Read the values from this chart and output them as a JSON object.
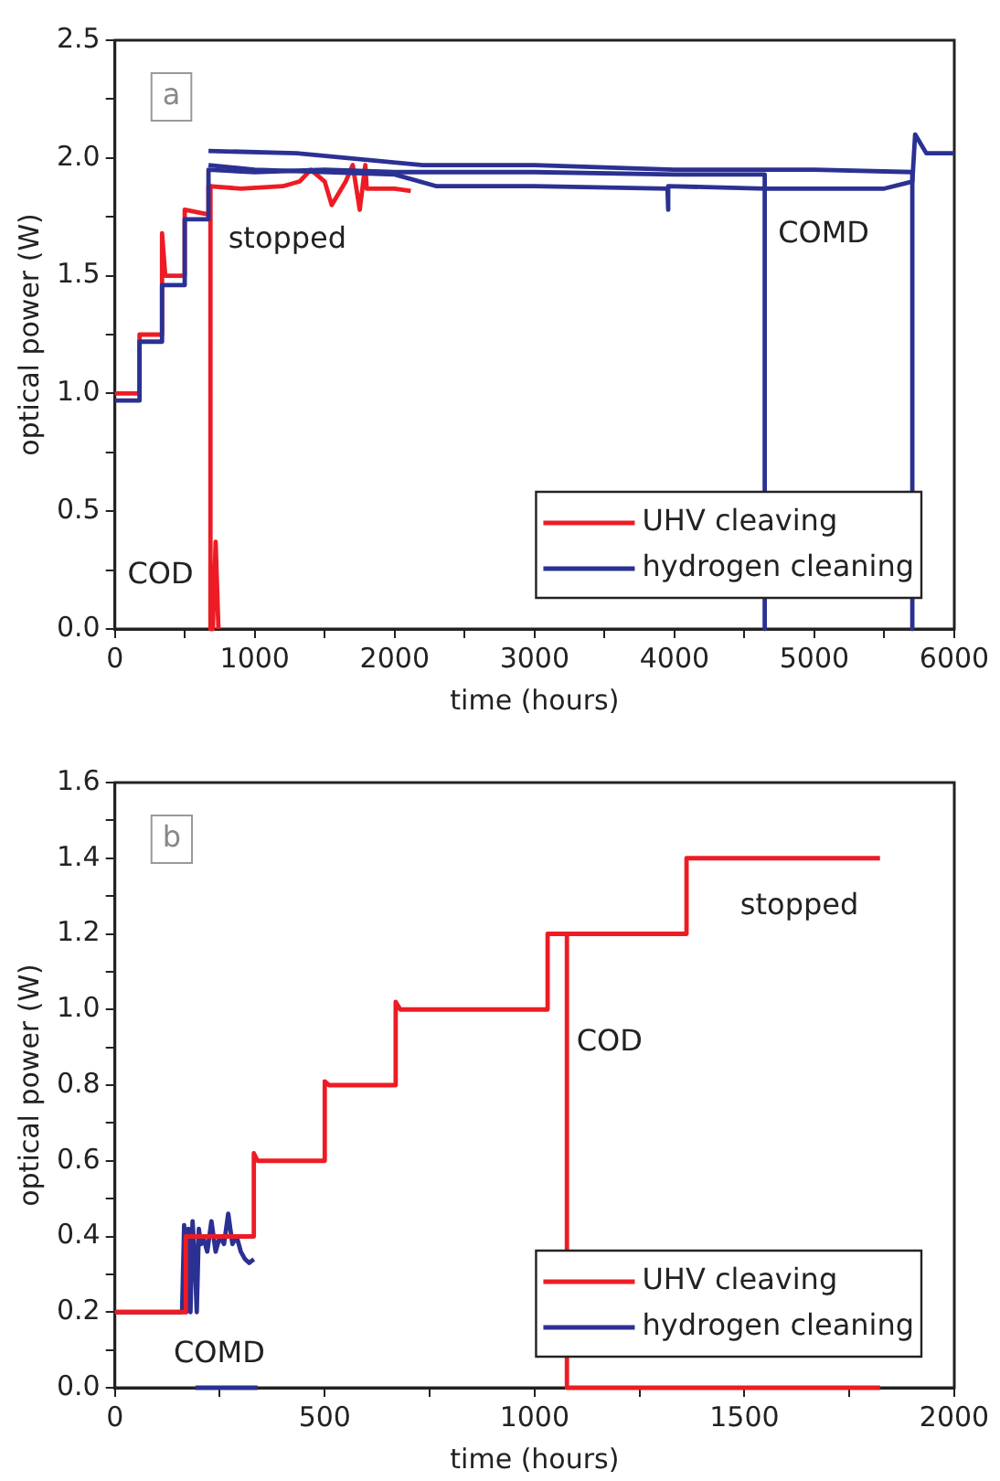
{
  "chart_data": [
    {
      "type": "line",
      "xlabel": "time (hours)",
      "ylabel": "optical power (W)",
      "legend": "bottom right",
      "marker": "none",
      "annotations": [
        "a",
        "COD",
        "stopped",
        "COMD"
      ],
      "xlim": [
        0,
        6000
      ],
      "ylim": [
        0,
        2.5
      ],
      "xticks": [
        0,
        {
          "value": 500,
          "label": null
        },
        1000,
        {
          "value": 1500,
          "label": null
        },
        2000,
        {
          "value": 2500,
          "label": null
        },
        3000,
        {
          "value": 3500,
          "label": null
        },
        4000,
        {
          "value": 4500,
          "label": null
        },
        5000,
        {
          "value": 5500,
          "label": null
        },
        6000
      ],
      "yticks": [
        {
          "value": 0,
          "label": "0.0"
        },
        {
          "value": 0.25,
          "label": null
        },
        0.5,
        {
          "value": 0.75,
          "label": null
        },
        {
          "value": 1,
          "label": "1.0"
        },
        {
          "value": 1.25,
          "label": null
        },
        1.5,
        {
          "value": 1.75,
          "label": null
        },
        {
          "value": 2,
          "label": "2.0"
        },
        {
          "value": 2.25,
          "label": null
        },
        2.5
      ],
      "series": [
        {
          "color": "#2b3192",
          "x": [
            0,
            176,
            176,
            337,
            337,
            499,
            499,
            669,
            669,
            1000,
            1500,
            2000,
            3000,
            4000,
            4645,
            4645
          ],
          "values": [
            0.97,
            0.97,
            1.22,
            1.22,
            1.46,
            1.46,
            1.74,
            1.74,
            1.95,
            1.94,
            1.95,
            1.94,
            1.94,
            1.93,
            1.93,
            0
          ]
        },
        {
          "color": "#2b3192",
          "x": [
            669,
            1000,
            2000,
            2300,
            3000,
            3950,
            3950,
            3960,
            4650,
            5500,
            5700,
            5720,
            5800,
            6000
          ],
          "values": [
            1.97,
            1.95,
            1.93,
            1.88,
            1.88,
            1.87,
            1.78,
            1.88,
            1.87,
            1.87,
            1.9,
            2.1,
            2.02,
            2.02
          ]
        },
        {
          "color": "#ed1c24",
          "x": [
            669,
            900,
            1200,
            1320,
            1400,
            1500,
            1550,
            1650,
            1700,
            1750,
            1790,
            1800,
            2000,
            2115
          ],
          "values": [
            1.88,
            1.87,
            1.88,
            1.9,
            1.95,
            1.9,
            1.8,
            1.9,
            1.97,
            1.78,
            1.97,
            1.87,
            1.87,
            1.86
          ]
        },
        {
          "name": "UHV cleaving",
          "color": "#ed1c24",
          "x": [
            0,
            176,
            176,
            337,
            337,
            360,
            499,
            499,
            669,
            669,
            683,
            683,
            700,
            720,
            740
          ],
          "values": [
            1.0,
            1.0,
            1.25,
            1.25,
            1.68,
            1.5,
            1.5,
            1.78,
            1.76,
            1.88,
            1.88,
            0,
            0,
            0.37,
            0
          ]
        },
        {
          "name": "hydrogen cleaning",
          "color": "#2b3192",
          "x": [
            669,
            1300,
            2200,
            3000,
            4000,
            5000,
            5700,
            5700
          ],
          "values": [
            2.03,
            2.02,
            1.97,
            1.97,
            1.95,
            1.95,
            1.94,
            0
          ]
        }
      ]
    },
    {
      "type": "line",
      "xlabel": "time (hours)",
      "ylabel": "optical power (W)",
      "legend": "bottom right",
      "marker": "none",
      "annotations": [
        "b",
        "COD",
        "stopped",
        "COMD"
      ],
      "xlim": [
        0,
        2000
      ],
      "ylim": [
        0,
        1.6
      ],
      "xticks": [
        0,
        {
          "value": 250,
          "label": null
        },
        500,
        {
          "value": 750,
          "label": null
        },
        1000,
        {
          "value": 1250,
          "label": null
        },
        1500,
        {
          "value": 1750,
          "label": null
        },
        2000
      ],
      "yticks": [
        {
          "value": 0,
          "label": "0.0"
        },
        {
          "value": 0.1,
          "label": null
        },
        0.2,
        {
          "value": 0.3,
          "label": null
        },
        0.4,
        {
          "value": 0.5,
          "label": null
        },
        0.6,
        {
          "value": 0.7,
          "label": null
        },
        0.8,
        {
          "value": 0.9,
          "label": null
        },
        {
          "value": 1,
          "label": "1.0"
        },
        {
          "value": 1.1,
          "label": null
        },
        1.2,
        {
          "value": 1.3,
          "label": null
        },
        1.4,
        {
          "value": 1.5,
          "label": null
        },
        1.6
      ],
      "series": [
        {
          "color": "#ed1c24",
          "x": [
            1031,
            1040,
            1077,
            1077,
            1823
          ],
          "values": [
            1.2,
            1.2,
            1.2,
            0,
            0
          ]
        },
        {
          "name": "UHV cleaving",
          "color": "#ed1c24",
          "x": [
            0,
            169,
            169,
            331,
            331,
            340,
            500,
            500,
            510,
            669,
            669,
            680,
            1031,
            1031,
            1362,
            1362,
            1823
          ],
          "values": [
            0.2,
            0.2,
            0.4,
            0.4,
            0.62,
            0.6,
            0.6,
            0.81,
            0.8,
            0.8,
            1.02,
            1.0,
            1.0,
            1.2,
            1.2,
            1.4,
            1.4
          ]
        },
        {
          "color": "#2b3192",
          "x": [
            192,
            340
          ],
          "values": [
            0,
            0
          ]
        },
        {
          "name": "hydrogen cleaning",
          "color": "#2b3192",
          "x": [
            0,
            160,
            165,
            170,
            175,
            180,
            185,
            190,
            195,
            200,
            205,
            210,
            220,
            230,
            240,
            250,
            260,
            270,
            280,
            290,
            300,
            310,
            320,
            331
          ],
          "values": [
            0.2,
            0.2,
            0.43,
            0.2,
            0.42,
            0.2,
            0.44,
            0.35,
            0.2,
            0.42,
            0.38,
            0.4,
            0.36,
            0.44,
            0.36,
            0.4,
            0.38,
            0.46,
            0.38,
            0.4,
            0.36,
            0.34,
            0.33,
            0.34
          ]
        }
      ]
    }
  ]
}
